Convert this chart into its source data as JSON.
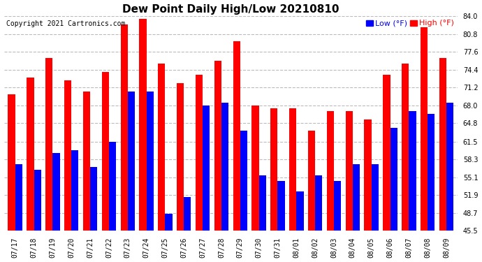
{
  "title": "Dew Point Daily High/Low 20210810",
  "copyright": "Copyright 2021 Cartronics.com",
  "legend_low": "Low (°F)",
  "legend_high": "High (°F)",
  "dates": [
    "07/17",
    "07/18",
    "07/19",
    "07/20",
    "07/21",
    "07/22",
    "07/23",
    "07/24",
    "07/25",
    "07/26",
    "07/27",
    "07/28",
    "07/29",
    "07/30",
    "07/31",
    "08/01",
    "08/02",
    "08/03",
    "08/04",
    "08/05",
    "08/06",
    "08/07",
    "08/08",
    "08/09"
  ],
  "high": [
    70.0,
    73.0,
    76.5,
    72.5,
    70.5,
    74.0,
    82.5,
    83.5,
    75.5,
    72.0,
    73.5,
    76.0,
    79.5,
    68.0,
    67.5,
    67.5,
    63.5,
    67.0,
    67.0,
    65.5,
    73.5,
    75.5,
    82.0,
    76.5
  ],
  "low": [
    57.5,
    56.5,
    59.5,
    60.0,
    57.0,
    61.5,
    70.5,
    70.5,
    48.5,
    51.5,
    68.0,
    68.5,
    63.5,
    55.5,
    54.5,
    52.5,
    55.5,
    54.5,
    57.5,
    57.5,
    64.0,
    67.0,
    66.5,
    68.5
  ],
  "ymin": 45.5,
  "ylim": [
    45.5,
    84.0
  ],
  "yticks": [
    45.5,
    48.7,
    51.9,
    55.1,
    58.3,
    61.5,
    64.8,
    68.0,
    71.2,
    74.4,
    77.6,
    80.8,
    84.0
  ],
  "bar_width": 0.38,
  "high_color": "#ff0000",
  "low_color": "#0000ff",
  "bg_color": "#ffffff",
  "grid_color": "#bbbbbb",
  "title_fontsize": 11,
  "tick_fontsize": 7,
  "copyright_fontsize": 7
}
